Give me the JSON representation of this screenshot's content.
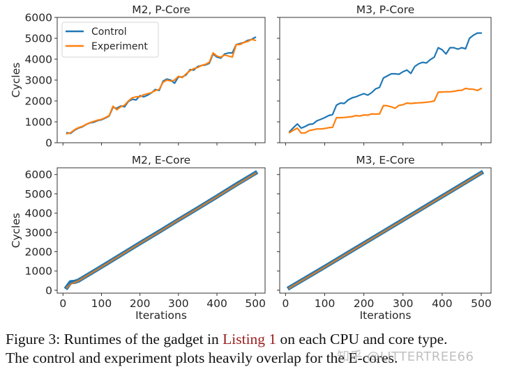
{
  "figure": {
    "caption_prefix": "Figure 3: Runtimes of the gadget in ",
    "caption_ref": "Listing 1",
    "caption_line1_suffix": " on each CPU and core type.",
    "caption_line2": "The control and experiment plots heavily overlap for the E-cores.",
    "watermark": "知乎 @LITTERTREE66"
  },
  "colors": {
    "control": "#1f77b4",
    "experiment": "#ff7f0e",
    "axis": "#333333"
  },
  "chart_data": [
    {
      "type": "line",
      "title": "M2, P-Core",
      "xlabel": "",
      "ylabel": "Cycles",
      "xlim": [
        -15,
        525
      ],
      "ylim": [
        0,
        6000
      ],
      "xticks": [
        0,
        100,
        200,
        300,
        400,
        500
      ],
      "xtick_labels_visible": false,
      "yticks": [
        0,
        1000,
        2000,
        3000,
        4000,
        5000,
        6000
      ],
      "ytick_labels": [
        "0",
        "1000",
        "2000",
        "3000",
        "4000",
        "5000",
        "6000"
      ],
      "legend": {
        "position": "upper-left",
        "entries": [
          "Control",
          "Experiment"
        ]
      },
      "x": [
        10,
        20,
        30,
        40,
        50,
        60,
        70,
        80,
        90,
        100,
        110,
        120,
        130,
        140,
        150,
        160,
        170,
        180,
        190,
        200,
        210,
        220,
        230,
        240,
        250,
        260,
        270,
        280,
        290,
        300,
        310,
        320,
        330,
        340,
        350,
        360,
        370,
        380,
        390,
        400,
        410,
        420,
        430,
        440,
        450,
        460,
        470,
        480,
        490,
        500
      ],
      "series": [
        {
          "name": "Control",
          "values": [
            480,
            450,
            600,
            700,
            760,
            870,
            950,
            980,
            1060,
            1100,
            1180,
            1280,
            1700,
            1650,
            1760,
            1720,
            1980,
            2080,
            2050,
            2250,
            2200,
            2280,
            2390,
            2550,
            2500,
            2950,
            3050,
            3000,
            2850,
            3150,
            3150,
            3250,
            3500,
            3480,
            3650,
            3700,
            3720,
            3800,
            4250,
            4100,
            4050,
            4250,
            4300,
            4300,
            4700,
            4750,
            4800,
            4900,
            4950,
            5050
          ]
        },
        {
          "name": "Experiment",
          "values": [
            430,
            480,
            620,
            720,
            780,
            880,
            960,
            1020,
            1080,
            1120,
            1200,
            1300,
            1750,
            1580,
            1720,
            1800,
            2000,
            2150,
            2200,
            2200,
            2300,
            2350,
            2400,
            2500,
            2550,
            2900,
            3000,
            2950,
            3000,
            3180,
            3120,
            3300,
            3450,
            3550,
            3600,
            3700,
            3750,
            3850,
            4300,
            4150,
            4100,
            4200,
            4150,
            4100,
            4700,
            4700,
            4800,
            4850,
            4950,
            4900
          ]
        }
      ]
    },
    {
      "type": "line",
      "title": "M3, P-Core",
      "xlabel": "",
      "ylabel": "",
      "xlim": [
        -15,
        525
      ],
      "ylim": [
        0,
        6000
      ],
      "xticks": [
        0,
        100,
        200,
        300,
        400,
        500
      ],
      "xtick_labels_visible": false,
      "yticks": [
        0,
        1000,
        2000,
        3000,
        4000,
        5000,
        6000
      ],
      "ytick_labels_visible": false,
      "x": [
        10,
        20,
        30,
        40,
        50,
        60,
        70,
        80,
        90,
        100,
        110,
        120,
        130,
        140,
        150,
        160,
        170,
        180,
        190,
        200,
        210,
        220,
        230,
        240,
        250,
        260,
        270,
        280,
        290,
        300,
        310,
        320,
        330,
        340,
        350,
        360,
        370,
        380,
        390,
        400,
        410,
        420,
        430,
        440,
        450,
        460,
        470,
        480,
        490,
        500
      ],
      "series": [
        {
          "name": "Control",
          "values": [
            520,
            720,
            900,
            700,
            780,
            880,
            900,
            1050,
            1120,
            1200,
            1300,
            1350,
            1800,
            1900,
            1880,
            2050,
            2150,
            2200,
            2280,
            2350,
            2280,
            2400,
            2580,
            2650,
            3100,
            3200,
            3300,
            3300,
            3280,
            3400,
            3480,
            3320,
            3650,
            3780,
            3850,
            3820,
            3980,
            4100,
            4550,
            4450,
            4250,
            4550,
            4550,
            4480,
            4550,
            4500,
            5000,
            5150,
            5250,
            5250
          ]
        },
        {
          "name": "Experiment",
          "values": [
            480,
            600,
            700,
            460,
            470,
            580,
            620,
            660,
            660,
            680,
            720,
            740,
            1200,
            1200,
            1210,
            1230,
            1250,
            1300,
            1280,
            1330,
            1320,
            1380,
            1370,
            1380,
            1780,
            1770,
            1720,
            1650,
            1790,
            1820,
            1900,
            1880,
            1900,
            1910,
            1920,
            1940,
            1960,
            2000,
            2420,
            2430,
            2440,
            2440,
            2460,
            2500,
            2510,
            2600,
            2570,
            2560,
            2500,
            2600
          ]
        }
      ]
    },
    {
      "type": "line",
      "title": "M2, E-Core",
      "xlabel": "Iterations",
      "ylabel": "Cycles",
      "xlim": [
        -15,
        525
      ],
      "ylim": [
        -150,
        6350
      ],
      "xticks": [
        0,
        100,
        200,
        300,
        400,
        500
      ],
      "xtick_labels": [
        "0",
        "100",
        "200",
        "300",
        "400",
        "500"
      ],
      "yticks": [
        0,
        1000,
        2000,
        3000,
        4000,
        5000,
        6000
      ],
      "ytick_labels": [
        "0",
        "1000",
        "2000",
        "3000",
        "4000",
        "5000",
        "6000"
      ],
      "x": [
        10,
        20,
        30,
        40,
        50,
        100,
        150,
        200,
        250,
        300,
        350,
        400,
        450,
        500
      ],
      "series": [
        {
          "name": "Control",
          "values": [
            150,
            420,
            430,
            500,
            620,
            1220,
            1830,
            2440,
            3040,
            3650,
            4250,
            4860,
            5480,
            6080
          ]
        },
        {
          "name": "Experiment",
          "values": [
            130,
            320,
            400,
            490,
            610,
            1210,
            1820,
            2430,
            3030,
            3640,
            4240,
            4850,
            5460,
            6060
          ]
        }
      ]
    },
    {
      "type": "line",
      "title": "M3, E-Core",
      "xlabel": "Iterations",
      "ylabel": "",
      "xlim": [
        -15,
        525
      ],
      "ylim": [
        -150,
        6350
      ],
      "xticks": [
        0,
        100,
        200,
        300,
        400,
        500
      ],
      "xtick_labels": [
        "0",
        "100",
        "200",
        "300",
        "400",
        "500"
      ],
      "yticks": [
        0,
        1000,
        2000,
        3000,
        4000,
        5000,
        6000
      ],
      "ytick_labels_visible": false,
      "x": [
        10,
        100,
        200,
        300,
        400,
        500
      ],
      "series": [
        {
          "name": "Control",
          "values": [
            130,
            1210,
            2430,
            3650,
            4870,
            6090
          ]
        },
        {
          "name": "Experiment",
          "values": [
            120,
            1200,
            2420,
            3640,
            4860,
            6080
          ]
        }
      ]
    }
  ]
}
